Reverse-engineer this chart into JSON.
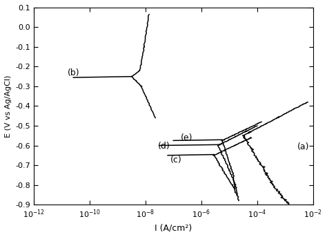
{
  "xlabel": "I (A/cm²)",
  "ylabel": "E (V vs Ag/AgCl)",
  "xlim_log_min": -12,
  "xlim_log_max": -2,
  "ylim_min": -0.9,
  "ylim_max": 0.1,
  "curve_color": "#000000",
  "bg_color": "#ffffff",
  "label_a": "(a)",
  "label_b": "(b)",
  "label_c": "(c)",
  "label_d": "(d)",
  "label_e": "(e)",
  "label_a_logI": -2.55,
  "label_a_E": -0.62,
  "label_b_logI": -10.8,
  "label_b_E": -0.245,
  "label_c_logI": -6.9,
  "label_c_E": -0.685,
  "label_d_logI": -7.2,
  "label_d_E": -0.615,
  "label_e_logI": -6.5,
  "label_e_E": -0.572
}
